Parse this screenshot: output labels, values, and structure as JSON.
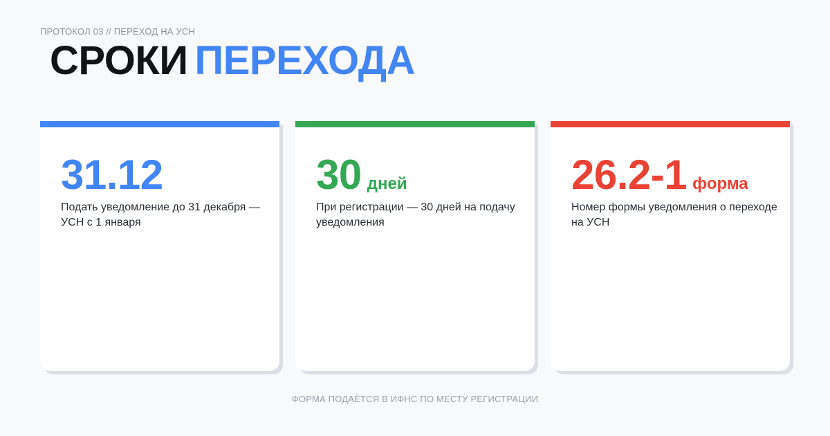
{
  "header": {
    "eyebrow": "ПРОТОКОЛ 03 // ПЕРЕХОД НА УСН",
    "title_part1": "СРОКИ",
    "title_part2": "ПЕРЕХОДА"
  },
  "colors": {
    "blue": "#4285f4",
    "green": "#34a853",
    "red": "#ea4335",
    "dark": "#121317"
  },
  "cards": [
    {
      "accent": "#4285f4",
      "value": "31.12",
      "unit": "",
      "description": "Подать уведомление до 31 декабря — УСН с 1 января"
    },
    {
      "accent": "#34a853",
      "value": "30",
      "unit": "дней",
      "description": "При регистрации — 30 дней на подачу уведомления"
    },
    {
      "accent": "#ea4335",
      "value": "26.2-1",
      "unit": "форма",
      "description": "Номер формы уведомления о переходе на УСН"
    }
  ],
  "footer": {
    "text": "ФОРМА ПОДАЁТСЯ В ИФНС ПО МЕСТУ РЕГИСТРАЦИИ"
  }
}
